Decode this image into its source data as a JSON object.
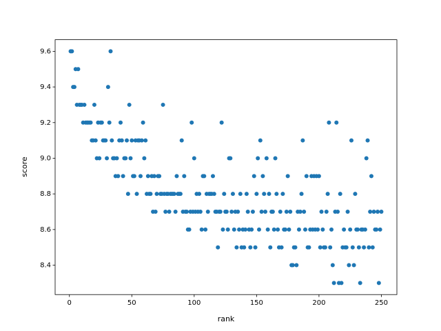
{
  "chart_data": {
    "type": "scatter",
    "x_label": "rank",
    "y_label": "score",
    "color": "#1f77b4",
    "xlim": [
      -11.45,
      262.45
    ],
    "ylim": [
      8.235,
      9.665
    ],
    "xticks": [
      0,
      50,
      100,
      150,
      200,
      250
    ],
    "yticks": [
      8.4,
      8.6,
      8.8,
      {
        "value": 9,
        "label": "9.0"
      },
      9.2,
      9.4,
      9.6
    ],
    "x": [
      1,
      2,
      3,
      4,
      5,
      6,
      7,
      8,
      9,
      10,
      11,
      12,
      13,
      14,
      15,
      16,
      17,
      18,
      19,
      20,
      21,
      22,
      23,
      24,
      25,
      26,
      27,
      28,
      29,
      30,
      31,
      32,
      33,
      34,
      35,
      36,
      37,
      38,
      39,
      40,
      41,
      42,
      43,
      44,
      45,
      46,
      47,
      48,
      49,
      50,
      51,
      52,
      53,
      54,
      55,
      56,
      57,
      58,
      59,
      60,
      61,
      62,
      63,
      64,
      65,
      66,
      67,
      68,
      69,
      70,
      71,
      72,
      73,
      74,
      75,
      76,
      77,
      78,
      79,
      80,
      81,
      82,
      83,
      84,
      85,
      86,
      87,
      88,
      89,
      90,
      91,
      92,
      93,
      94,
      95,
      96,
      97,
      98,
      99,
      100,
      101,
      102,
      103,
      104,
      105,
      106,
      107,
      108,
      109,
      110,
      111,
      112,
      113,
      114,
      115,
      116,
      117,
      118,
      119,
      120,
      121,
      122,
      123,
      124,
      125,
      126,
      127,
      128,
      129,
      130,
      131,
      132,
      133,
      134,
      135,
      136,
      137,
      138,
      139,
      140,
      141,
      142,
      143,
      144,
      145,
      146,
      147,
      148,
      149,
      150,
      151,
      152,
      153,
      154,
      155,
      156,
      157,
      158,
      159,
      160,
      161,
      162,
      163,
      164,
      165,
      166,
      167,
      168,
      169,
      170,
      171,
      172,
      173,
      174,
      175,
      176,
      177,
      178,
      179,
      180,
      181,
      182,
      183,
      184,
      185,
      186,
      187,
      188,
      189,
      190,
      191,
      192,
      193,
      194,
      195,
      196,
      197,
      198,
      199,
      200,
      201,
      202,
      203,
      204,
      205,
      206,
      207,
      208,
      209,
      210,
      211,
      212,
      213,
      214,
      215,
      216,
      217,
      218,
      219,
      220,
      221,
      222,
      223,
      224,
      225,
      226,
      227,
      228,
      229,
      230,
      231,
      232,
      233,
      234,
      235,
      236,
      237,
      238,
      239,
      240,
      241,
      242,
      243,
      244,
      245,
      246,
      247,
      248,
      249,
      250
    ],
    "values": [
      9.6,
      9.6,
      9.4,
      9.4,
      9.5,
      9.3,
      9.5,
      9.3,
      9.3,
      9.3,
      9.2,
      9.3,
      9.2,
      9.2,
      9.2,
      9.2,
      9.2,
      9.1,
      9.1,
      9.3,
      9.1,
      9.0,
      9.2,
      9.0,
      9.2,
      9.2,
      9.1,
      9.1,
      9.1,
      9.0,
      9.4,
      9.2,
      9.6,
      9.1,
      9.0,
      9.0,
      8.9,
      9.0,
      8.9,
      9.1,
      9.2,
      9.1,
      8.9,
      9.0,
      9.0,
      9.1,
      8.8,
      9.3,
      9.0,
      9.1,
      8.9,
      8.9,
      9.1,
      8.8,
      9.1,
      9.1,
      8.9,
      9.1,
      9.2,
      9.0,
      9.1,
      8.8,
      8.9,
      8.8,
      8.8,
      8.9,
      8.7,
      8.9,
      8.7,
      8.8,
      8.9,
      8.9,
      8.8,
      8.8,
      9.3,
      8.8,
      8.7,
      8.8,
      8.8,
      8.7,
      8.8,
      8.8,
      8.8,
      8.8,
      8.7,
      8.9,
      8.8,
      8.8,
      8.8,
      9.1,
      8.7,
      8.9,
      8.7,
      8.7,
      8.6,
      8.6,
      8.7,
      9.2,
      8.7,
      9.0,
      8.7,
      8.8,
      8.7,
      8.8,
      8.7,
      8.6,
      8.9,
      8.9,
      8.6,
      8.8,
      8.7,
      8.8,
      8.8,
      8.8,
      8.9,
      8.8,
      8.7,
      8.7,
      8.5,
      8.7,
      8.7,
      9.2,
      8.6,
      8.8,
      8.7,
      8.7,
      8.6,
      9.0,
      9.0,
      8.7,
      8.8,
      8.6,
      8.7,
      8.5,
      8.7,
      8.6,
      8.8,
      8.5,
      8.6,
      8.5,
      8.6,
      8.8,
      8.7,
      8.6,
      8.5,
      8.6,
      8.7,
      8.9,
      8.5,
      8.8,
      9.0,
      8.6,
      9.1,
      8.7,
      8.9,
      8.8,
      8.7,
      9.0,
      8.6,
      8.8,
      8.5,
      8.7,
      8.7,
      8.6,
      9.0,
      8.8,
      8.6,
      8.5,
      8.7,
      8.5,
      8.8,
      8.6,
      8.6,
      8.7,
      8.9,
      8.6,
      8.7,
      8.4,
      8.4,
      8.5,
      8.5,
      8.4,
      8.7,
      8.6,
      8.7,
      8.8,
      9.1,
      8.7,
      8.6,
      8.9,
      8.5,
      8.5,
      8.6,
      8.9,
      8.6,
      8.9,
      8.6,
      8.9,
      8.6,
      8.9,
      8.5,
      8.7,
      8.6,
      8.5,
      8.5,
      8.7,
      8.8,
      9.2,
      8.5,
      8.6,
      8.4,
      8.3,
      8.7,
      9.2,
      8.7,
      8.3,
      8.8,
      8.3,
      8.5,
      8.6,
      8.5,
      8.5,
      8.7,
      8.4,
      8.6,
      9.1,
      8.5,
      8.4,
      8.8,
      8.6,
      8.6,
      8.5,
      8.3,
      8.6,
      8.6,
      8.5,
      8.6,
      9.0,
      9.1,
      8.5,
      8.7,
      8.9,
      8.5,
      8.7,
      8.6,
      8.6,
      8.7,
      8.3,
      8.6,
      8.7
    ]
  }
}
